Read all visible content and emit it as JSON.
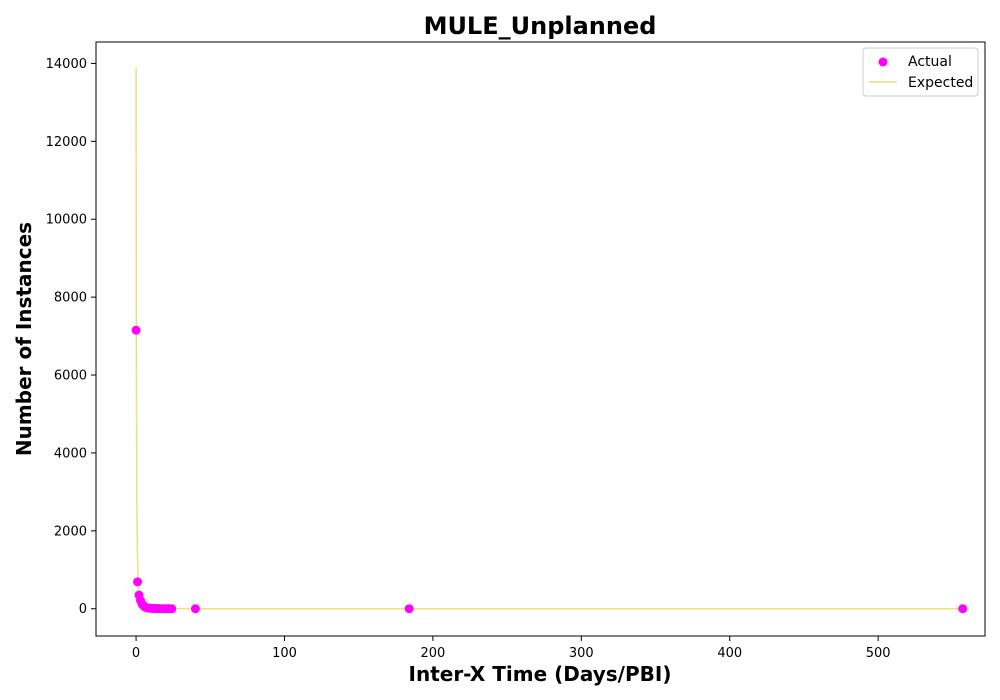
{
  "chart_data": {
    "type": "scatter",
    "title": "MULE_Unplanned",
    "xlabel": "Inter-X Time (Days/PBI)",
    "ylabel": "Number of Instances",
    "xlim": [
      -27,
      572
    ],
    "ylim": [
      -700,
      14550
    ],
    "xticks": [
      0,
      100,
      200,
      300,
      400,
      500
    ],
    "yticks": [
      0,
      2000,
      4000,
      6000,
      8000,
      10000,
      12000,
      14000
    ],
    "grid": false,
    "legend_position": "top-right",
    "series": [
      {
        "name": "Actual",
        "kind": "scatter",
        "color": "#ff00ff",
        "points": [
          [
            0,
            7150
          ],
          [
            1,
            690
          ],
          [
            2,
            350
          ],
          [
            3,
            210
          ],
          [
            4,
            120
          ],
          [
            5,
            80
          ],
          [
            6,
            45
          ],
          [
            7,
            30
          ],
          [
            8,
            20
          ],
          [
            9,
            15
          ],
          [
            10,
            12
          ],
          [
            11,
            10
          ],
          [
            12,
            8
          ],
          [
            13,
            6
          ],
          [
            14,
            5
          ],
          [
            15,
            4
          ],
          [
            16,
            3
          ],
          [
            18,
            3
          ],
          [
            20,
            2
          ],
          [
            22,
            2
          ],
          [
            24,
            1
          ],
          [
            40,
            1
          ],
          [
            184,
            1
          ],
          [
            557,
            1
          ]
        ]
      },
      {
        "name": "Expected",
        "kind": "line",
        "color": "#f0dc82",
        "x": [
          0.02,
          0.04,
          0.07,
          0.1,
          0.15,
          0.2,
          0.3,
          0.4,
          0.5,
          0.7,
          0.9,
          1.1,
          1.4,
          1.8,
          2.2,
          2.7,
          3.5,
          4.5,
          6,
          8,
          10,
          15,
          25,
          50,
          100,
          200,
          300,
          400,
          557
        ],
        "values": [
          13900,
          12500,
          10800,
          9500,
          7900,
          6700,
          5000,
          3900,
          3100,
          2100,
          1500,
          1100,
          760,
          480,
          320,
          200,
          110,
          60,
          30,
          15,
          9,
          4,
          2,
          0.5,
          0.2,
          0.05,
          0.02,
          0.01,
          0
        ]
      }
    ]
  }
}
